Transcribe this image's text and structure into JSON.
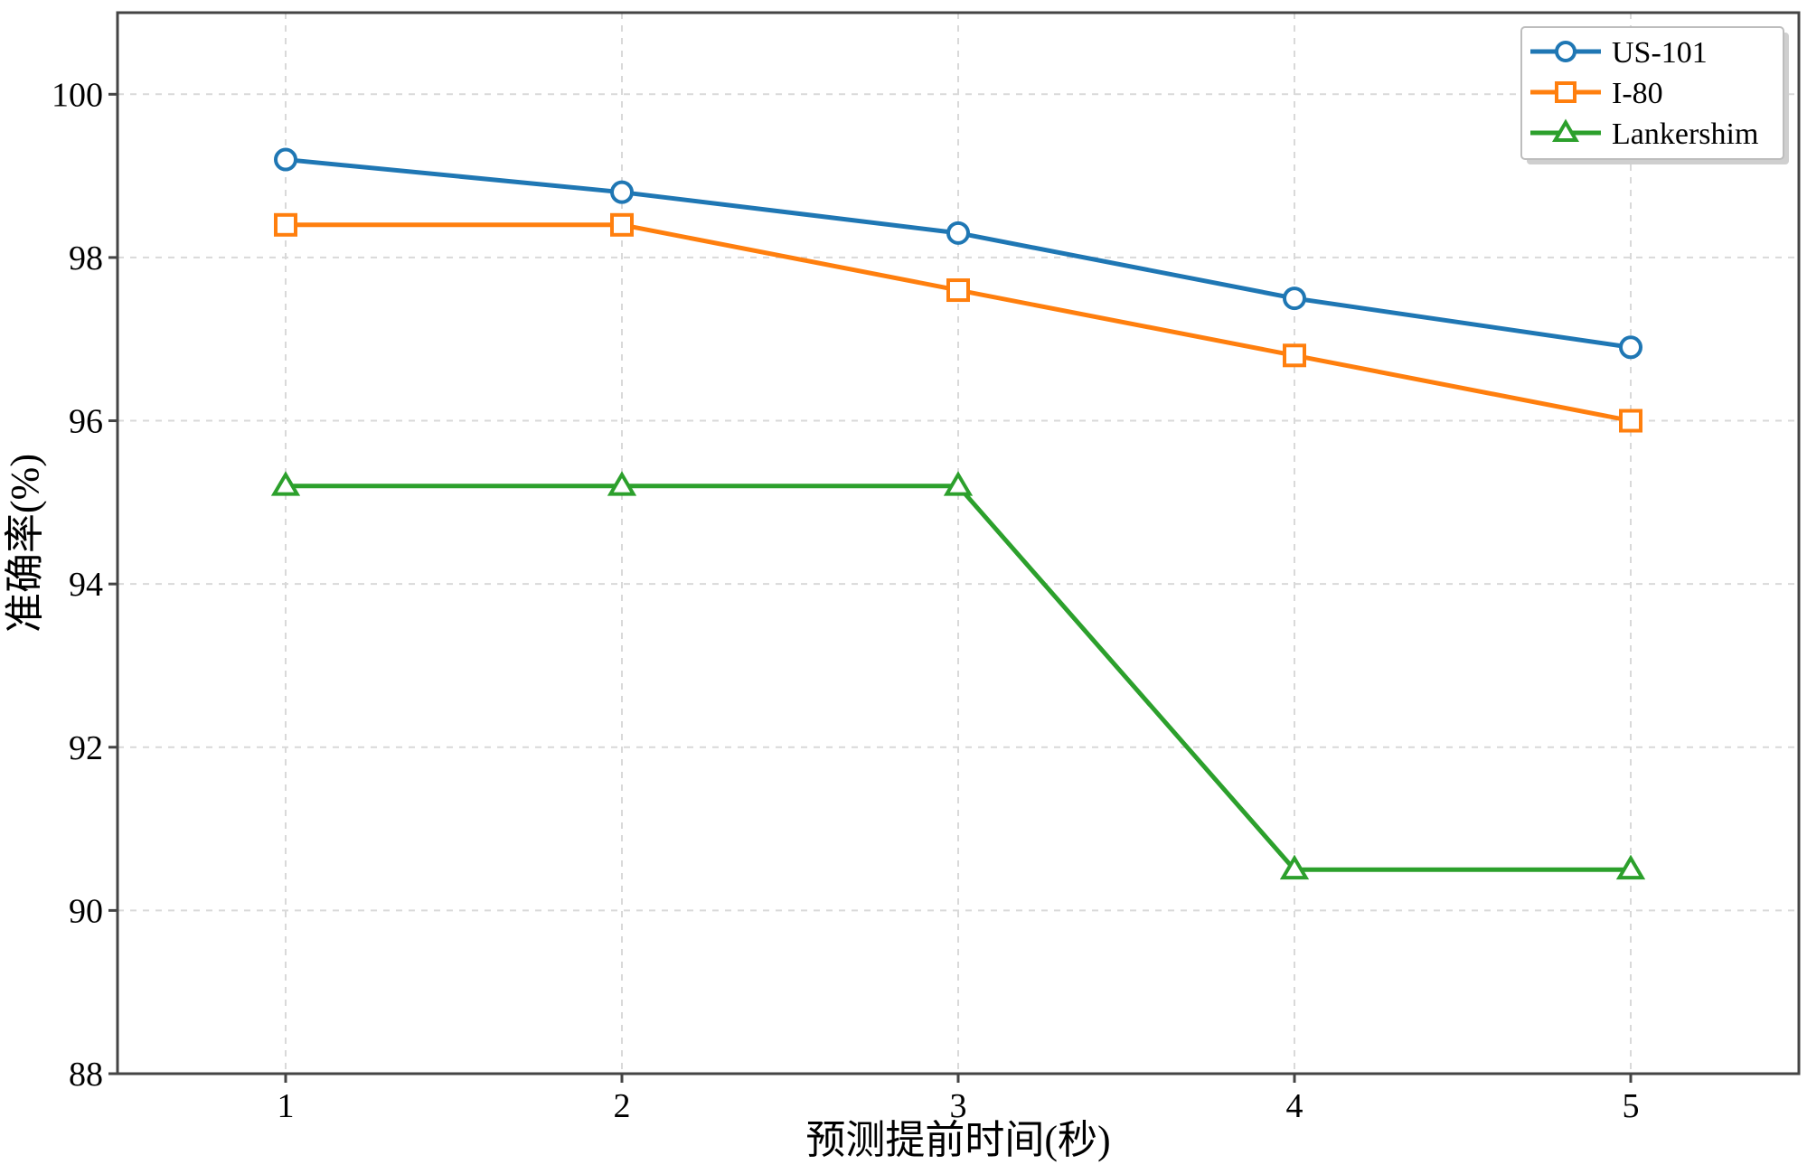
{
  "chart_data": {
    "type": "line",
    "xlabel": "预测提前时间(秒)",
    "ylabel": "准确率(%)",
    "x": [
      1,
      2,
      3,
      4,
      5
    ],
    "xlim": [
      0.5,
      5.5
    ],
    "ylim": [
      88,
      101
    ],
    "xticks": [
      "1",
      "2",
      "3",
      "4",
      "5"
    ],
    "yticks": [
      "88",
      "90",
      "92",
      "94",
      "96",
      "98",
      "100"
    ],
    "grid": true,
    "legend_position": "top-right",
    "series": [
      {
        "name": "US-101",
        "values": [
          99.2,
          98.8,
          98.3,
          97.5,
          96.9
        ],
        "color": "#1f77b4",
        "marker": "circle"
      },
      {
        "name": "I-80",
        "values": [
          98.4,
          98.4,
          97.6,
          96.8,
          96.0
        ],
        "color": "#ff7f0e",
        "marker": "square"
      },
      {
        "name": "Lankershim",
        "values": [
          95.2,
          95.2,
          95.2,
          90.5,
          90.5
        ],
        "color": "#2ca02c",
        "marker": "triangle"
      }
    ]
  }
}
